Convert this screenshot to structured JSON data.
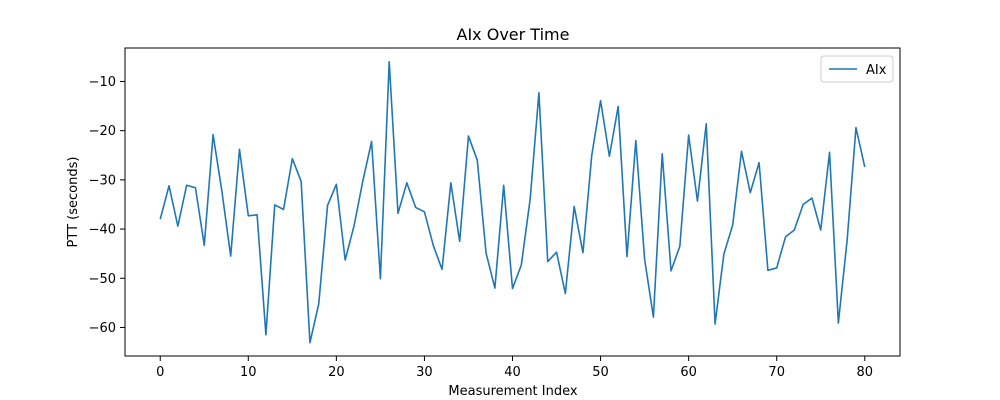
{
  "chart_data": {
    "type": "line",
    "title": "AIx Over Time",
    "xlabel": "Measurement Index",
    "ylabel": "PTT (seconds)",
    "xlim": [
      -4,
      84
    ],
    "ylim": [
      -65.8,
      -3.2
    ],
    "xticks": [
      0,
      10,
      20,
      30,
      40,
      50,
      60,
      70,
      80
    ],
    "xtick_labels": [
      "0",
      "10",
      "20",
      "30",
      "40",
      "50",
      "60",
      "70",
      "80"
    ],
    "yticks": [
      -60,
      -50,
      -40,
      -30,
      -20,
      -10
    ],
    "ytick_labels": [
      "−60",
      "−50",
      "−40",
      "−30",
      "−20",
      "−10"
    ],
    "grid": false,
    "legend_position": "top-right",
    "series": [
      {
        "name": "AIx",
        "color": "#1f77b4",
        "x": [
          0,
          1,
          2,
          3,
          4,
          5,
          6,
          7,
          8,
          9,
          10,
          11,
          12,
          13,
          14,
          15,
          16,
          17,
          18,
          19,
          20,
          21,
          22,
          23,
          24,
          25,
          26,
          27,
          28,
          29,
          30,
          31,
          32,
          33,
          34,
          35,
          36,
          37,
          38,
          39,
          40,
          41,
          42,
          43,
          44,
          45,
          46,
          47,
          48,
          49,
          50,
          51,
          52,
          53,
          54,
          55,
          56,
          57,
          58,
          59,
          60,
          61,
          62,
          63,
          64,
          65,
          66,
          67,
          68,
          69,
          70,
          71,
          72,
          73,
          74,
          75,
          76,
          77,
          78,
          79,
          80
        ],
        "y": [
          -38.0,
          -31.2,
          -39.4,
          -31.1,
          -31.6,
          -43.3,
          -20.8,
          -32.3,
          -45.5,
          -23.8,
          -37.3,
          -37.1,
          -61.5,
          -35.1,
          -36.0,
          -25.7,
          -30.3,
          -63.1,
          -55.2,
          -35.2,
          -30.9,
          -46.3,
          -39.4,
          -30.3,
          -22.2,
          -50.1,
          -6.0,
          -36.8,
          -30.6,
          -35.6,
          -36.5,
          -43.3,
          -48.2,
          -30.6,
          -42.5,
          -21.1,
          -26.0,
          -44.9,
          -52.0,
          -31.1,
          -52.1,
          -47.3,
          -34.0,
          -12.3,
          -46.6,
          -44.7,
          -53.1,
          -35.4,
          -44.8,
          -25.0,
          -13.9,
          -25.2,
          -15.1,
          -45.6,
          -22.0,
          -46.1,
          -57.9,
          -24.7,
          -48.5,
          -43.5,
          -20.9,
          -34.3,
          -18.6,
          -59.3,
          -45.1,
          -39.2,
          -24.2,
          -32.6,
          -26.5,
          -48.4,
          -47.9,
          -41.6,
          -40.2,
          -35.0,
          -33.7,
          -40.2,
          -24.4,
          -59.1,
          -42.2,
          -19.4,
          -27.4
        ]
      }
    ]
  }
}
